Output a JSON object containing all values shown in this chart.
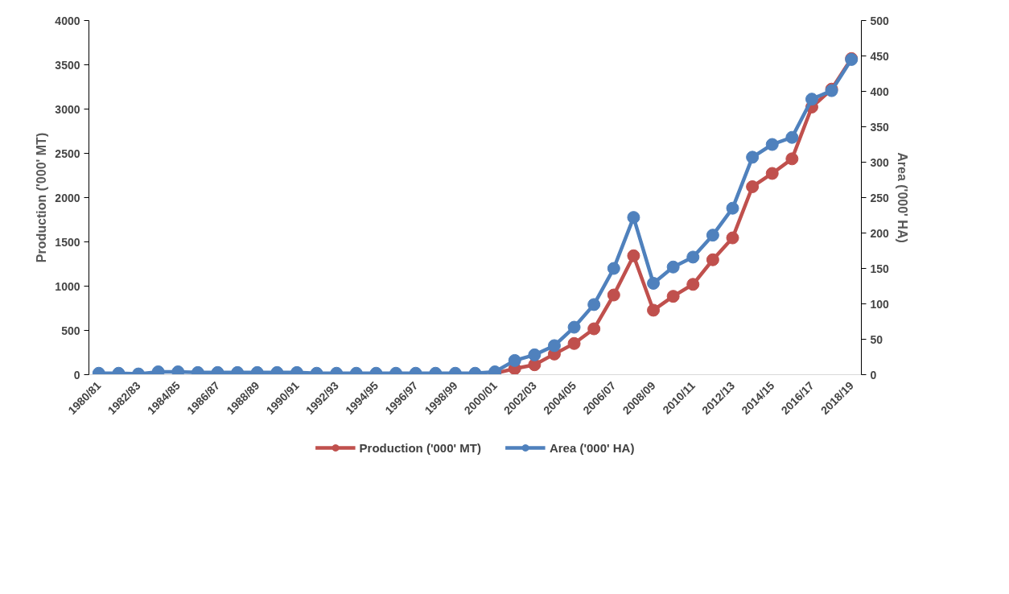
{
  "chart_data": {
    "type": "line",
    "ylabel": "Production ('000' MT)",
    "y2label": "Area ('000' HA)",
    "categories": [
      "1980/81",
      null,
      "1982/83",
      null,
      "1984/85",
      null,
      "1986/87",
      null,
      "1988/89",
      null,
      "1990/91",
      null,
      "1992/93",
      null,
      "1994/95",
      null,
      "1996/97",
      null,
      "1998/99",
      null,
      "2000/01",
      null,
      "2002/03",
      null,
      "2004/05",
      null,
      "2006/07",
      null,
      "2008/09",
      null,
      "2010/11",
      null,
      "2012/13",
      null,
      "2014/15",
      null,
      "2016/17",
      null,
      "2018/19"
    ],
    "series": [
      {
        "name": "Production ('000' MT)",
        "color": "#c0504d",
        "values": [
          null,
          null,
          null,
          null,
          null,
          null,
          null,
          null,
          null,
          null,
          null,
          null,
          null,
          null,
          null,
          null,
          null,
          null,
          null,
          null,
          15,
          68,
          112,
          233,
          352,
          518,
          900,
          1343,
          728,
          885,
          1020,
          1298,
          1545,
          2123,
          2273,
          2438,
          3023,
          3225,
          3570
        ]
      },
      {
        "name": "Area ('000' HA)",
        "color": "#4f81bd",
        "axis": "y2",
        "values": [
          2,
          2,
          1,
          4,
          4,
          3,
          3,
          3,
          3,
          3,
          3,
          2,
          2,
          2,
          2,
          2,
          2,
          2,
          2,
          2,
          4,
          20,
          28,
          41,
          67,
          99,
          150,
          222,
          129,
          152,
          166,
          197,
          235,
          307,
          325,
          335,
          389,
          401,
          445
        ]
      }
    ],
    "ylim": [
      0,
      4000
    ],
    "yticks": [
      0,
      500,
      1000,
      1500,
      2000,
      2500,
      3000,
      3500,
      4000
    ],
    "y2lim": [
      0,
      500
    ],
    "y2ticks": [
      0,
      50,
      100,
      150,
      200,
      250,
      300,
      350,
      400,
      450,
      500
    ],
    "grid": false,
    "legend": "bottom",
    "marker": "circle",
    "line_style": "solid"
  }
}
